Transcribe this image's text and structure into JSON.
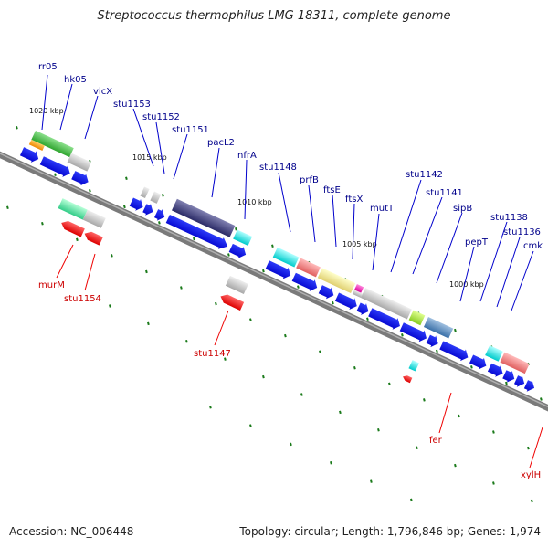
{
  "title": "Streptococcus thermophilus LMG 18311, complete genome",
  "accession_label": "Accession: NC_006448",
  "summary_label": "Topology: circular; Length: 1,796,846 bp; Genes: 1,974",
  "colors": {
    "forward_arrow": "#0000ee",
    "reverse_arrow": "#ee0000",
    "label_forward": "#00008b",
    "label_reverse": "#cc0000",
    "backbone": "#777777",
    "tick": "#1a7a1a"
  },
  "kbp_ticks": [
    "1020 kbp",
    "1015 kbp",
    "1010 kbp",
    "1005 kbp",
    "1000 kbp"
  ],
  "forward_labels": [
    "rr05",
    "hk05",
    "vicX",
    "stu1153",
    "stu1152",
    "stu1151",
    "pacL2",
    "nfrA",
    "stu1148",
    "prfB",
    "ftsE",
    "ftsX",
    "mutT",
    "stu1142",
    "stu1141",
    "sipB",
    "pepT",
    "stu1138",
    "stu1136",
    "cmk"
  ],
  "reverse_labels": [
    "murM",
    "stu1154",
    "stu1147",
    "fer",
    "xylH"
  ]
}
